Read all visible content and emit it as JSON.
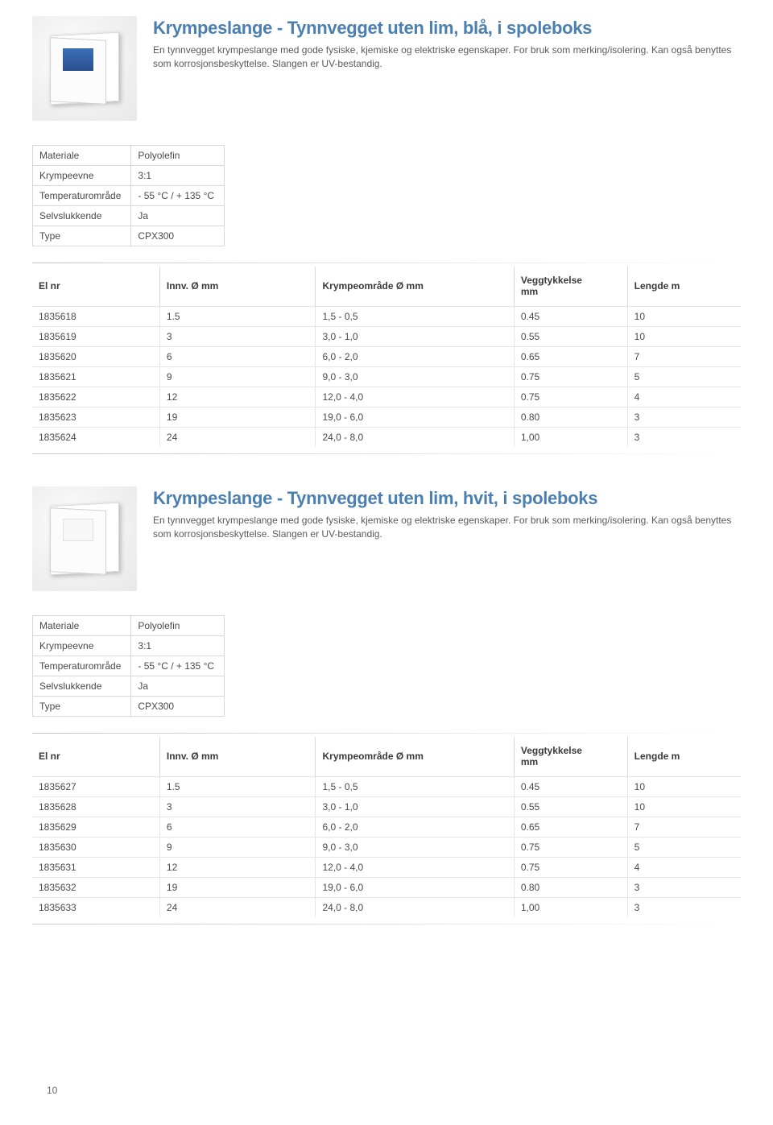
{
  "page_number": "10",
  "products": [
    {
      "title": "Krympeslange - Tynnvegget uten lim, blå, i spoleboks",
      "desc": "En tynnvegget krympeslange med gode fysiske, kjemiske og elektriske egenskaper. For bruk som merking/isolering. Kan også benyttes som korrosjonsbeskyttelse. Slangen er UV-bestandig.",
      "window_color": "blue",
      "specs": {
        "labels": {
          "material": "Materiale",
          "shrink": "Krympeevne",
          "temp": "Temperaturområde",
          "selfext": "Selvslukkende",
          "type": "Type"
        },
        "values": {
          "material": "Polyolefin",
          "shrink": "3:1",
          "temp": "- 55 °C / + 135 °C",
          "selfext": "Ja",
          "type": "CPX300"
        }
      },
      "table": {
        "columns": {
          "elnr": "El nr",
          "innv": "Innv. Ø mm",
          "krymp": "Krympeområde Ø mm",
          "vegg1": "Veggtykkelse",
          "vegg2": "mm",
          "lengde": "Lengde m"
        },
        "rows": [
          {
            "elnr": "1835618",
            "innv": "1.5",
            "krymp": "1,5 - 0,5",
            "vegg": "0.45",
            "lengde": "10"
          },
          {
            "elnr": "1835619",
            "innv": "3",
            "krymp": "3,0 - 1,0",
            "vegg": "0.55",
            "lengde": "10"
          },
          {
            "elnr": "1835620",
            "innv": "6",
            "krymp": "6,0 - 2,0",
            "vegg": "0.65",
            "lengde": "7"
          },
          {
            "elnr": "1835621",
            "innv": "9",
            "krymp": "9,0 - 3,0",
            "vegg": "0.75",
            "lengde": "5"
          },
          {
            "elnr": "1835622",
            "innv": "12",
            "krymp": "12,0 - 4,0",
            "vegg": "0.75",
            "lengde": "4"
          },
          {
            "elnr": "1835623",
            "innv": "19",
            "krymp": "19,0 - 6,0",
            "vegg": "0.80",
            "lengde": "3"
          },
          {
            "elnr": "1835624",
            "innv": "24",
            "krymp": "24,0 - 8,0",
            "vegg": "1,00",
            "lengde": "3"
          }
        ]
      }
    },
    {
      "title": "Krympeslange - Tynnvegget uten lim, hvit, i spoleboks",
      "desc": "En tynnvegget krympeslange med gode fysiske, kjemiske og elektriske egenskaper. For bruk som merking/isolering. Kan også benyttes som korrosjonsbeskyttelse. Slangen er UV-bestandig.",
      "window_color": "white",
      "specs": {
        "labels": {
          "material": "Materiale",
          "shrink": "Krympeevne",
          "temp": "Temperaturområde",
          "selfext": "Selvslukkende",
          "type": "Type"
        },
        "values": {
          "material": "Polyolefin",
          "shrink": "3:1",
          "temp": "- 55 °C / + 135 °C",
          "selfext": "Ja",
          "type": "CPX300"
        }
      },
      "table": {
        "columns": {
          "elnr": "El nr",
          "innv": "Innv. Ø mm",
          "krymp": "Krympeområde Ø mm",
          "vegg1": "Veggtykkelse",
          "vegg2": "mm",
          "lengde": "Lengde m"
        },
        "rows": [
          {
            "elnr": "1835627",
            "innv": "1.5",
            "krymp": "1,5 - 0,5",
            "vegg": "0.45",
            "lengde": "10"
          },
          {
            "elnr": "1835628",
            "innv": "3",
            "krymp": "3,0 - 1,0",
            "vegg": "0.55",
            "lengde": "10"
          },
          {
            "elnr": "1835629",
            "innv": "6",
            "krymp": "6,0 - 2,0",
            "vegg": "0.65",
            "lengde": "7"
          },
          {
            "elnr": "1835630",
            "innv": "9",
            "krymp": "9,0 - 3,0",
            "vegg": "0.75",
            "lengde": "5"
          },
          {
            "elnr": "1835631",
            "innv": "12",
            "krymp": "12,0 - 4,0",
            "vegg": "0.75",
            "lengde": "4"
          },
          {
            "elnr": "1835632",
            "innv": "19",
            "krymp": "19,0 - 6,0",
            "vegg": "0.80",
            "lengde": "3"
          },
          {
            "elnr": "1835633",
            "innv": "24",
            "krymp": "24,0 - 8,0",
            "vegg": "1,00",
            "lengde": "3"
          }
        ]
      }
    }
  ],
  "style": {
    "title_color": "#4a7fb0",
    "title_fontsize": 22,
    "body_fontsize": 12,
    "border_color": "#d9d9d9",
    "row_border_color": "#e4e4e4",
    "text_color": "#4a4a4a",
    "col_widths_pct": [
      18,
      22,
      28,
      16,
      16
    ]
  }
}
